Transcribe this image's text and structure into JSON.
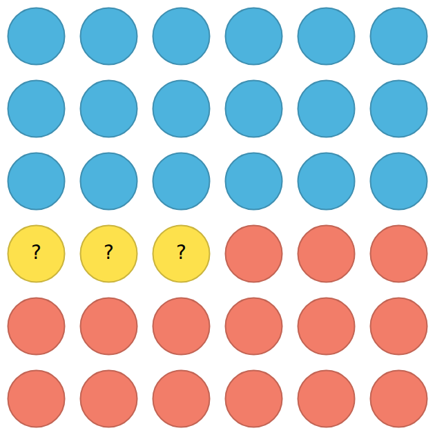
{
  "chart_data": {
    "type": "waffle",
    "series": [
      {
        "color": "#4db3dd",
        "values": [
          18
        ]
      },
      {
        "color": "#fde14c",
        "values": [
          3
        ],
        "text": "?"
      },
      {
        "color": "#f27d69",
        "values": [
          15
        ]
      }
    ],
    "tick_labels": false,
    "grid": false
  }
}
